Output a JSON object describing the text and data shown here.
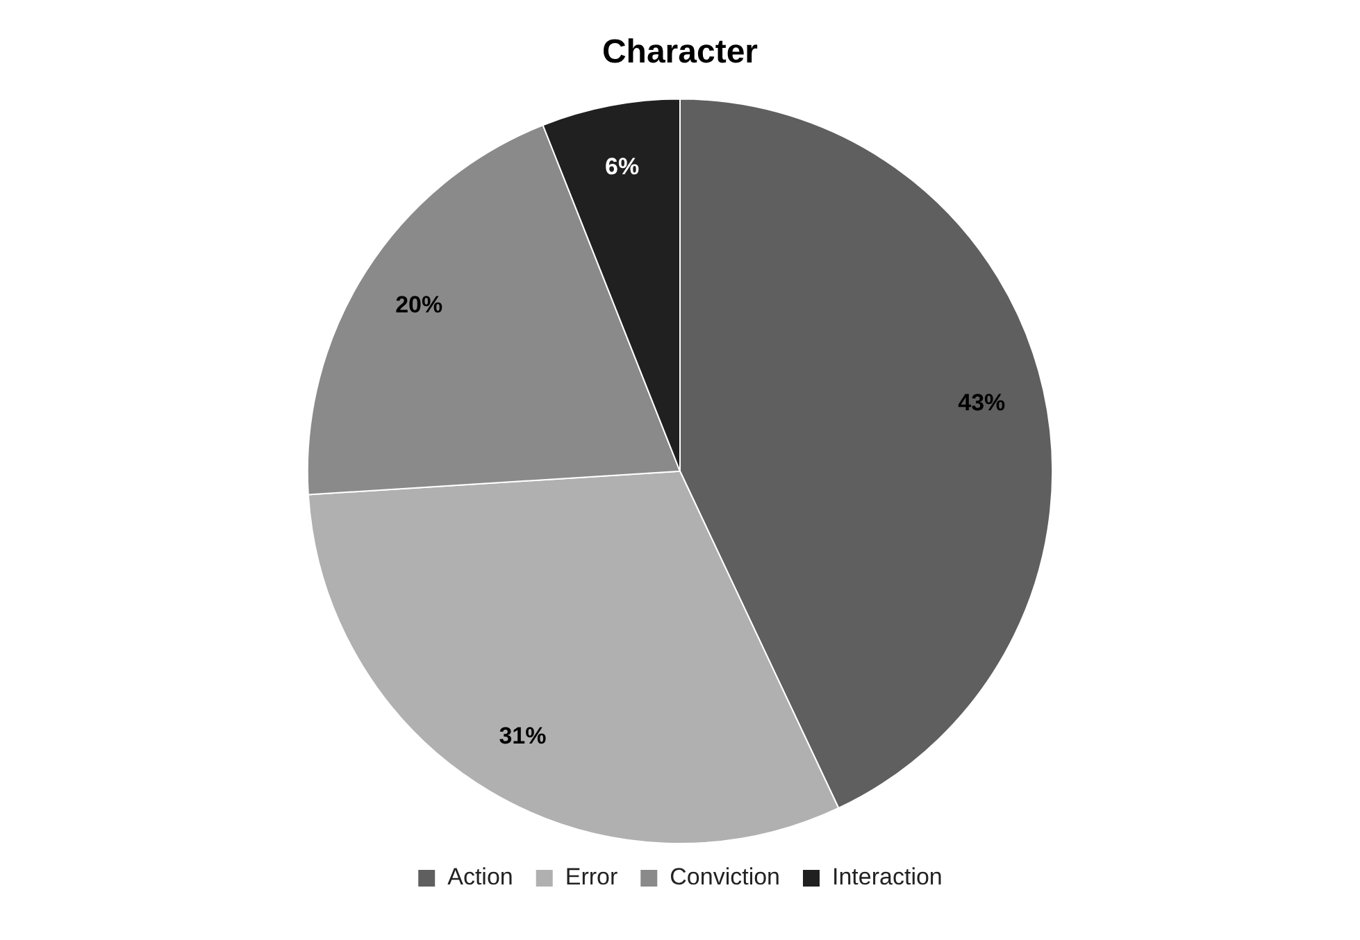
{
  "chart_data": {
    "type": "pie",
    "title": "Character",
    "categories": [
      "Action",
      "Error",
      "Conviction",
      "Interaction"
    ],
    "values": [
      43,
      31,
      20,
      6
    ],
    "value_labels": [
      "43%",
      "31%",
      "20%",
      "6%"
    ],
    "colors": [
      "#5f5f5f",
      "#b0b0b0",
      "#8a8a8a",
      "#202020"
    ],
    "legend": "bottom"
  }
}
